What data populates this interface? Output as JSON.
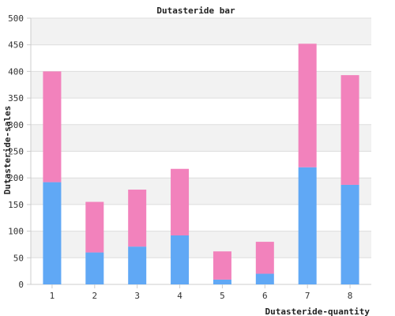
{
  "chart_data": {
    "type": "bar",
    "stacked": true,
    "title": "Dutasteride bar",
    "xlabel": "Dutasteride-quantity",
    "ylabel": "Dutasteride-sales",
    "categories": [
      "1",
      "2",
      "3",
      "4",
      "5",
      "6",
      "7",
      "8"
    ],
    "series": [
      {
        "values": [
          192,
          60,
          71,
          92,
          9,
          20,
          220,
          187
        ],
        "color": "#60a8f5"
      },
      {
        "values": [
          208,
          95,
          107,
          125,
          53,
          60,
          232,
          206
        ],
        "color": "#f282bc"
      }
    ],
    "ylim": [
      0,
      500
    ],
    "yticks": [
      0,
      50,
      100,
      150,
      200,
      250,
      300,
      350,
      400,
      450,
      500
    ],
    "grid": true,
    "band_colors": [
      "#ffffff",
      "#f2f2f2"
    ],
    "grid_color": "#dddddd",
    "axis_color": "#cccccc"
  }
}
